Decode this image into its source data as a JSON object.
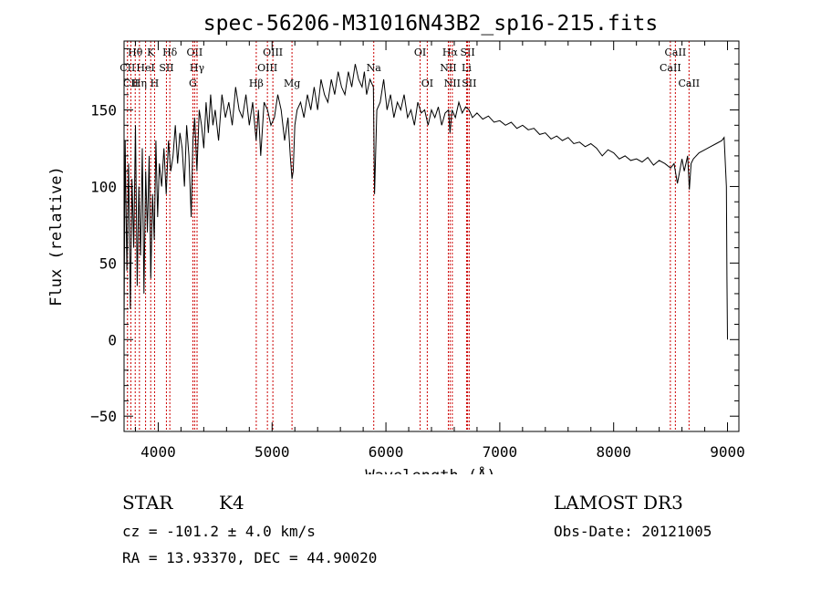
{
  "chart_data": {
    "type": "line",
    "title": "spec-56206-M31016N43B2_sp16-215.fits",
    "xlabel": "Wavelength (Å)",
    "ylabel": "Flux (relative)",
    "xlim": [
      3700,
      9100
    ],
    "ylim": [
      -60,
      195
    ],
    "xticks": [
      4000,
      5000,
      6000,
      7000,
      8000,
      9000
    ],
    "yticks": [
      -50,
      0,
      50,
      100,
      150
    ],
    "series": [
      {
        "name": "flux",
        "x": [
          3700,
          3710,
          3725,
          3740,
          3755,
          3770,
          3785,
          3800,
          3815,
          3830,
          3845,
          3860,
          3875,
          3890,
          3905,
          3920,
          3935,
          3950,
          3965,
          3980,
          3995,
          4010,
          4030,
          4050,
          4070,
          4090,
          4110,
          4130,
          4150,
          4170,
          4190,
          4210,
          4230,
          4250,
          4270,
          4290,
          4305,
          4320,
          4340,
          4360,
          4380,
          4400,
          4420,
          4440,
          4460,
          4480,
          4500,
          4530,
          4560,
          4590,
          4620,
          4650,
          4680,
          4710,
          4740,
          4770,
          4800,
          4830,
          4860,
          4880,
          4900,
          4930,
          4960,
          4990,
          5020,
          5050,
          5080,
          5110,
          5140,
          5160,
          5175,
          5185,
          5200,
          5220,
          5250,
          5280,
          5310,
          5340,
          5370,
          5400,
          5430,
          5460,
          5490,
          5520,
          5550,
          5580,
          5610,
          5640,
          5670,
          5700,
          5730,
          5760,
          5790,
          5810,
          5830,
          5860,
          5890,
          5900,
          5920,
          5950,
          5980,
          6010,
          6040,
          6070,
          6100,
          6130,
          6160,
          6190,
          6220,
          6250,
          6280,
          6310,
          6340,
          6370,
          6400,
          6430,
          6460,
          6490,
          6520,
          6550,
          6563,
          6580,
          6610,
          6640,
          6670,
          6700,
          6730,
          6760,
          6800,
          6850,
          6900,
          6950,
          7000,
          7050,
          7100,
          7150,
          7200,
          7250,
          7300,
          7350,
          7400,
          7450,
          7500,
          7550,
          7600,
          7650,
          7700,
          7750,
          7800,
          7850,
          7900,
          7950,
          8000,
          8050,
          8100,
          8150,
          8200,
          8250,
          8300,
          8350,
          8400,
          8450,
          8500,
          8530,
          8560,
          8600,
          8620,
          8650,
          8665,
          8680,
          8700,
          8750,
          8800,
          8850,
          8900,
          8950,
          8970,
          8990,
          8995,
          9000
        ],
        "y": [
          10,
          130,
          45,
          115,
          20,
          105,
          60,
          140,
          35,
          100,
          55,
          125,
          30,
          110,
          70,
          120,
          40,
          95,
          65,
          130,
          80,
          115,
          100,
          125,
          95,
          130,
          110,
          120,
          140,
          115,
          135,
          125,
          100,
          140,
          120,
          80,
          130,
          145,
          110,
          150,
          140,
          125,
          155,
          135,
          160,
          140,
          150,
          130,
          160,
          145,
          155,
          140,
          165,
          150,
          145,
          160,
          140,
          155,
          130,
          150,
          120,
          155,
          150,
          140,
          145,
          160,
          150,
          130,
          145,
          120,
          105,
          110,
          140,
          150,
          155,
          145,
          160,
          150,
          165,
          150,
          170,
          160,
          155,
          170,
          160,
          175,
          165,
          160,
          175,
          165,
          180,
          170,
          165,
          175,
          160,
          170,
          165,
          95,
          150,
          155,
          170,
          150,
          160,
          145,
          155,
          150,
          160,
          145,
          150,
          140,
          155,
          148,
          150,
          140,
          150,
          145,
          152,
          140,
          148,
          150,
          135,
          150,
          145,
          155,
          148,
          152,
          150,
          145,
          148,
          144,
          146,
          142,
          143,
          140,
          142,
          138,
          140,
          137,
          138,
          134,
          135,
          131,
          133,
          130,
          132,
          128,
          129,
          126,
          128,
          125,
          120,
          124,
          122,
          118,
          120,
          117,
          118,
          116,
          119,
          114,
          117,
          115,
          112,
          115,
          102,
          118,
          110,
          120,
          98,
          115,
          118,
          122,
          124,
          126,
          128,
          130,
          132,
          100,
          40,
          0
        ]
      }
    ],
    "line_markers": [
      {
        "label": "Hθ",
        "x": 3798,
        "row": 1
      },
      {
        "label": "K",
        "x": 3934,
        "row": 1
      },
      {
        "label": "Hδ",
        "x": 4102,
        "row": 1
      },
      {
        "label": "OII",
        "x": 4320,
        "row": 1
      },
      {
        "label": "OIII",
        "x": 5007,
        "row": 1
      },
      {
        "label": "OI",
        "x": 6300,
        "row": 1
      },
      {
        "label": "Hα",
        "x": 6563,
        "row": 1
      },
      {
        "label": "SII",
        "x": 6717,
        "row": 1
      },
      {
        "label": "CaII",
        "x": 8542,
        "row": 1
      },
      {
        "label": "CII",
        "x": 3730,
        "row": 2
      },
      {
        "label": "HeI",
        "x": 3889,
        "row": 2
      },
      {
        "label": "SII",
        "x": 4072,
        "row": 2
      },
      {
        "label": "Hγ",
        "x": 4341,
        "row": 2
      },
      {
        "label": "OIII",
        "x": 4959,
        "row": 2
      },
      {
        "label": "Na",
        "x": 5893,
        "row": 2
      },
      {
        "label": "NII",
        "x": 6548,
        "row": 2
      },
      {
        "label": "Li",
        "x": 6708,
        "row": 2
      },
      {
        "label": "CaII",
        "x": 8498,
        "row": 2
      },
      {
        "label": "CII",
        "x": 3760,
        "row": 3
      },
      {
        "label": "Hη",
        "x": 3835,
        "row": 3
      },
      {
        "label": "H",
        "x": 3968,
        "row": 3
      },
      {
        "label": "G",
        "x": 4304,
        "row": 3
      },
      {
        "label": "Hβ",
        "x": 4861,
        "row": 3
      },
      {
        "label": "Mg",
        "x": 5175,
        "row": 3
      },
      {
        "label": "OI",
        "x": 6363,
        "row": 3
      },
      {
        "label": "NII",
        "x": 6583,
        "row": 3
      },
      {
        "label": "SII",
        "x": 6731,
        "row": 3
      },
      {
        "label": "CaII",
        "x": 8662,
        "row": 3
      }
    ]
  },
  "info": {
    "object_class": "STAR",
    "subclass": "K4",
    "survey": "LAMOST DR3",
    "cz": "cz = -101.2 ± 4.0 km/s",
    "obs_date": "Obs-Date: 20121005",
    "coords": "RA =  13.93370, DEC =  44.90020"
  }
}
